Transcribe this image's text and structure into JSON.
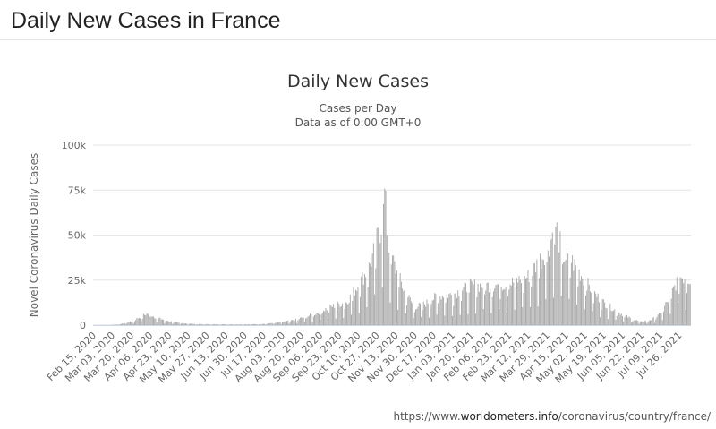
{
  "page": {
    "title": "Daily New Cases in France"
  },
  "source": {
    "prefix": "https://www.",
    "brand": "worldometers.info",
    "suffix": "/coronavirus/country/france/"
  },
  "chart_data": {
    "type": "bar",
    "title": "Daily New Cases",
    "subtitle_lines": [
      "Cases per Day",
      "Data as of 0:00 GMT+0"
    ],
    "ylabel": "Novel Coronavirus Daily Cases",
    "xlabel": "",
    "ylim": [
      0,
      100000
    ],
    "y_ticks": [
      {
        "value": 0,
        "label": "0"
      },
      {
        "value": 25000,
        "label": "25k"
      },
      {
        "value": 50000,
        "label": "50k"
      },
      {
        "value": 75000,
        "label": "75k"
      },
      {
        "value": 100000,
        "label": "100k"
      }
    ],
    "x_start": "2020-02-15",
    "x_end": "2021-08-05",
    "x_tick_labels": [
      "Feb 15, 2020",
      "Mar 03, 2020",
      "Mar 20, 2020",
      "Apr 06, 2020",
      "Apr 23, 2020",
      "May 10, 2020",
      "May 27, 2020",
      "Jun 13, 2020",
      "Jun 30, 2020",
      "Jul 17, 2020",
      "Aug 03, 2020",
      "Aug 20, 2020",
      "Sep 06, 2020",
      "Sep 23, 2020",
      "Oct 10, 2020",
      "Oct 27, 2020",
      "Nov 13, 2020",
      "Nov 30, 2020",
      "Dec 17, 2020",
      "Jan 03, 2021",
      "Jan 20, 2021",
      "Feb 06, 2021",
      "Feb 23, 2021",
      "Mar 12, 2021",
      "Mar 29, 2021",
      "Apr 15, 2021",
      "May 02, 2021",
      "May 19, 2021",
      "Jun 05, 2021",
      "Jun 22, 2021",
      "Jul 09, 2021",
      "Jul 26, 2021"
    ],
    "grid": "horizontal",
    "legend": "none",
    "series": [
      {
        "values_by_date_estimated": [
          [
            "2020-02-15",
            0
          ],
          [
            "2020-03-01",
            100
          ],
          [
            "2020-03-10",
            500
          ],
          [
            "2020-03-20",
            2000
          ],
          [
            "2020-03-31",
            5500
          ],
          [
            "2020-04-04",
            6500
          ],
          [
            "2020-04-10",
            4500
          ],
          [
            "2020-04-20",
            2700
          ],
          [
            "2020-05-01",
            1200
          ],
          [
            "2020-05-20",
            500
          ],
          [
            "2020-06-30",
            400
          ],
          [
            "2020-07-15",
            600
          ],
          [
            "2020-07-31",
            1400
          ],
          [
            "2020-08-15",
            3000
          ],
          [
            "2020-08-31",
            6000
          ],
          [
            "2020-09-15",
            10000
          ],
          [
            "2020-09-30",
            13000
          ],
          [
            "2020-10-10",
            22000
          ],
          [
            "2020-10-20",
            32000
          ],
          [
            "2020-10-26",
            44000
          ],
          [
            "2020-10-31",
            56000
          ],
          [
            "2020-11-02",
            83000
          ],
          [
            "2020-11-06",
            45000
          ],
          [
            "2020-11-13",
            31000
          ],
          [
            "2020-11-20",
            20000
          ],
          [
            "2020-11-30",
            10000
          ],
          [
            "2020-12-10",
            12000
          ],
          [
            "2020-12-20",
            16000
          ],
          [
            "2021-01-03",
            17000
          ],
          [
            "2021-01-20",
            22000
          ],
          [
            "2021-02-06",
            22000
          ],
          [
            "2021-02-23",
            23000
          ],
          [
            "2021-03-12",
            27000
          ],
          [
            "2021-03-25",
            38000
          ],
          [
            "2021-04-01",
            47000
          ],
          [
            "2021-04-06",
            56000
          ],
          [
            "2021-04-12",
            39000
          ],
          [
            "2021-04-20",
            36000
          ],
          [
            "2021-05-02",
            25000
          ],
          [
            "2021-05-10",
            18000
          ],
          [
            "2021-05-20",
            12000
          ],
          [
            "2021-06-05",
            6000
          ],
          [
            "2021-06-15",
            3000
          ],
          [
            "2021-06-22",
            2000
          ],
          [
            "2021-07-01",
            3000
          ],
          [
            "2021-07-09",
            6000
          ],
          [
            "2021-07-18",
            16000
          ],
          [
            "2021-07-26",
            27000
          ],
          [
            "2021-08-05",
            26000
          ]
        ],
        "color": "#a6a6a6"
      }
    ],
    "colors": {
      "bar": "#a6a6a6",
      "grid": "#e6e6e6",
      "axis": "#ccd6eb"
    }
  }
}
